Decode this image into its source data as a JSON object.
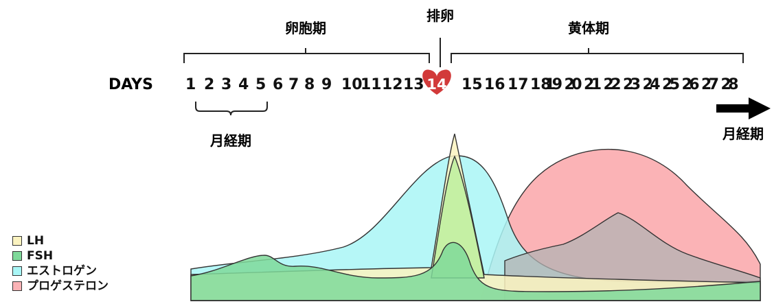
{
  "phases": {
    "follicular": "卵胞期",
    "ovulation": "排卵",
    "luteal": "黄体期",
    "menstruation": "月経期",
    "next_menstruation": "月経期"
  },
  "days_label": "DAYS",
  "days": [
    "1",
    "2",
    "3",
    "4",
    "5",
    "6",
    "7",
    "8",
    "9",
    "10",
    "11",
    "12",
    "13",
    "14",
    "15",
    "16",
    "17",
    "18",
    "19",
    "20",
    "21",
    "22",
    "23",
    "24",
    "25",
    "26",
    "27",
    "28"
  ],
  "ovulation_day": "14",
  "legend": [
    {
      "label": "LH",
      "color": "#fbf3c0"
    },
    {
      "label": "FSH",
      "color": "#7fd99a"
    },
    {
      "label": "エストロゲン",
      "color": "#a9f6f6"
    },
    {
      "label": "プロゲステロン",
      "color": "#fbb3b6"
    }
  ],
  "colors": {
    "heart": "#d23a3a",
    "arrow": "#000000"
  }
}
